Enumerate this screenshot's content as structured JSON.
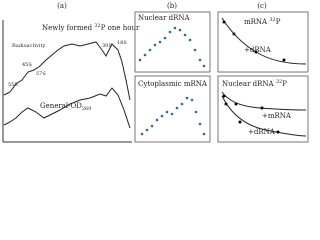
{
  "panel_a": {
    "label": "(a)",
    "title": {
      "pre": "Newly formed ",
      "sup": "32",
      "post": "P one hour"
    },
    "radioactivity": "Radioactivity",
    "peaks": [
      "55S",
      "45S",
      "57S",
      "30S",
      "18S"
    ],
    "od": {
      "text": "General-OD",
      "sub": "260"
    }
  },
  "panel_b": {
    "label": "(b)",
    "top": "Nuclear dRNA",
    "bottom": "Cytoplasmic mRNA"
  },
  "panel_c": {
    "label": "(c)",
    "top": {
      "title": {
        "pre": "mRNA ",
        "sup": "32",
        "post": "P"
      },
      "curve": "+dRNA"
    },
    "bottom": {
      "title": {
        "pre": "Nuclear dRNA ",
        "sup": "32",
        "post": "P"
      },
      "curves": [
        "+mRNA",
        "+dRNA"
      ]
    }
  }
}
